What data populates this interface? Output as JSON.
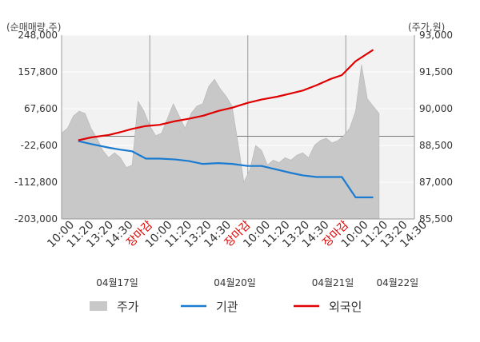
{
  "chart_data": {
    "type": "line",
    "left_axis_unit": "(순매매량,주)",
    "right_axis_unit": "(주가,원)",
    "left_ticks": [
      "248,000",
      "157,800",
      "67,600",
      "-22,600",
      "-112,800",
      "-203,000"
    ],
    "right_ticks": [
      "93,000",
      "91,500",
      "90,000",
      "88,500",
      "87,000",
      "85,500"
    ],
    "ylim_left": [
      -203000,
      248000
    ],
    "ylim_right": [
      85500,
      93000
    ],
    "x_labels": [
      "10:00",
      "11:20",
      "13:20",
      "14:30",
      "장마감",
      "10:00",
      "11:20",
      "13:20",
      "14:30",
      "장마감",
      "10:00",
      "11:20",
      "13:20",
      "14:30",
      "장마감",
      "10:00",
      "11:20",
      "13:20",
      "14:30"
    ],
    "x_label_close": "장마감",
    "dates": [
      "04월17일",
      "04월20일",
      "04월21일",
      "04월22일"
    ],
    "grid": true,
    "legend_position": "bottom",
    "series": [
      {
        "name": "주가",
        "kind": "area",
        "axis": "right",
        "color": "#c8c8c8",
        "x": [
          0,
          0.3,
          0.6,
          0.9,
          1.2,
          1.5,
          1.8,
          2.1,
          2.4,
          2.7,
          3.0,
          3.3,
          3.6,
          3.9,
          4.2,
          4.5,
          4.8,
          5.1,
          5.4,
          5.7,
          6.0,
          6.3,
          6.6,
          6.9,
          7.2,
          7.5,
          7.8,
          8.1,
          8.4,
          8.7,
          9.0,
          9.3,
          9.6,
          9.9,
          10.2,
          10.5,
          10.8,
          11.1,
          11.4,
          11.7,
          12.0,
          12.3,
          12.6,
          12.9,
          13.2,
          13.5,
          13.8,
          14.1,
          14.4,
          14.7,
          15.0,
          15.3,
          15.6,
          15.9,
          16.2
        ],
        "values": [
          89000,
          89200,
          89700,
          89900,
          89800,
          89200,
          88800,
          88300,
          88000,
          88200,
          88000,
          87600,
          87700,
          90300,
          89900,
          89300,
          88900,
          89000,
          89600,
          90200,
          89700,
          89200,
          89800,
          90100,
          90200,
          90900,
          91200,
          90800,
          90500,
          90100,
          88600,
          87000,
          87500,
          88500,
          88300,
          87700,
          87900,
          87800,
          88000,
          87900,
          88100,
          88200,
          88000,
          88500,
          88700,
          88800,
          88600,
          88700,
          88900,
          89200,
          89900,
          91800,
          90400,
          90100,
          89800
        ]
      },
      {
        "name": "기관",
        "kind": "line",
        "axis": "left",
        "color": "#1a7bd0",
        "x": [
          0.85,
          1.5,
          2.4,
          3.0,
          3.6,
          4.3,
          5.0,
          5.8,
          6.5,
          7.2,
          8.0,
          8.7,
          9.5,
          10.2,
          11.0,
          11.7,
          12.3,
          13.0,
          13.7,
          14.3,
          15.0,
          15.9
        ],
        "values": [
          -12000,
          -19000,
          -28000,
          -33000,
          -37000,
          -55000,
          -55000,
          -57000,
          -61000,
          -68000,
          -66000,
          -68000,
          -73000,
          -73000,
          -82000,
          -90000,
          -96000,
          -100000,
          -100000,
          -100000,
          -150000,
          -150000
        ]
      },
      {
        "name": "외국인",
        "kind": "line",
        "axis": "left",
        "color": "#e10000",
        "x": [
          0.85,
          1.5,
          2.4,
          3.0,
          3.6,
          4.3,
          5.0,
          5.8,
          6.5,
          7.2,
          8.0,
          8.7,
          9.5,
          10.2,
          11.0,
          11.7,
          12.3,
          13.0,
          13.7,
          14.3,
          15.0,
          15.9
        ],
        "values": [
          -10000,
          -3000,
          3000,
          10000,
          18000,
          25000,
          28000,
          37000,
          43000,
          50000,
          62000,
          70000,
          82000,
          90000,
          97000,
          105000,
          112000,
          125000,
          140000,
          150000,
          184000,
          212000
        ]
      }
    ]
  }
}
